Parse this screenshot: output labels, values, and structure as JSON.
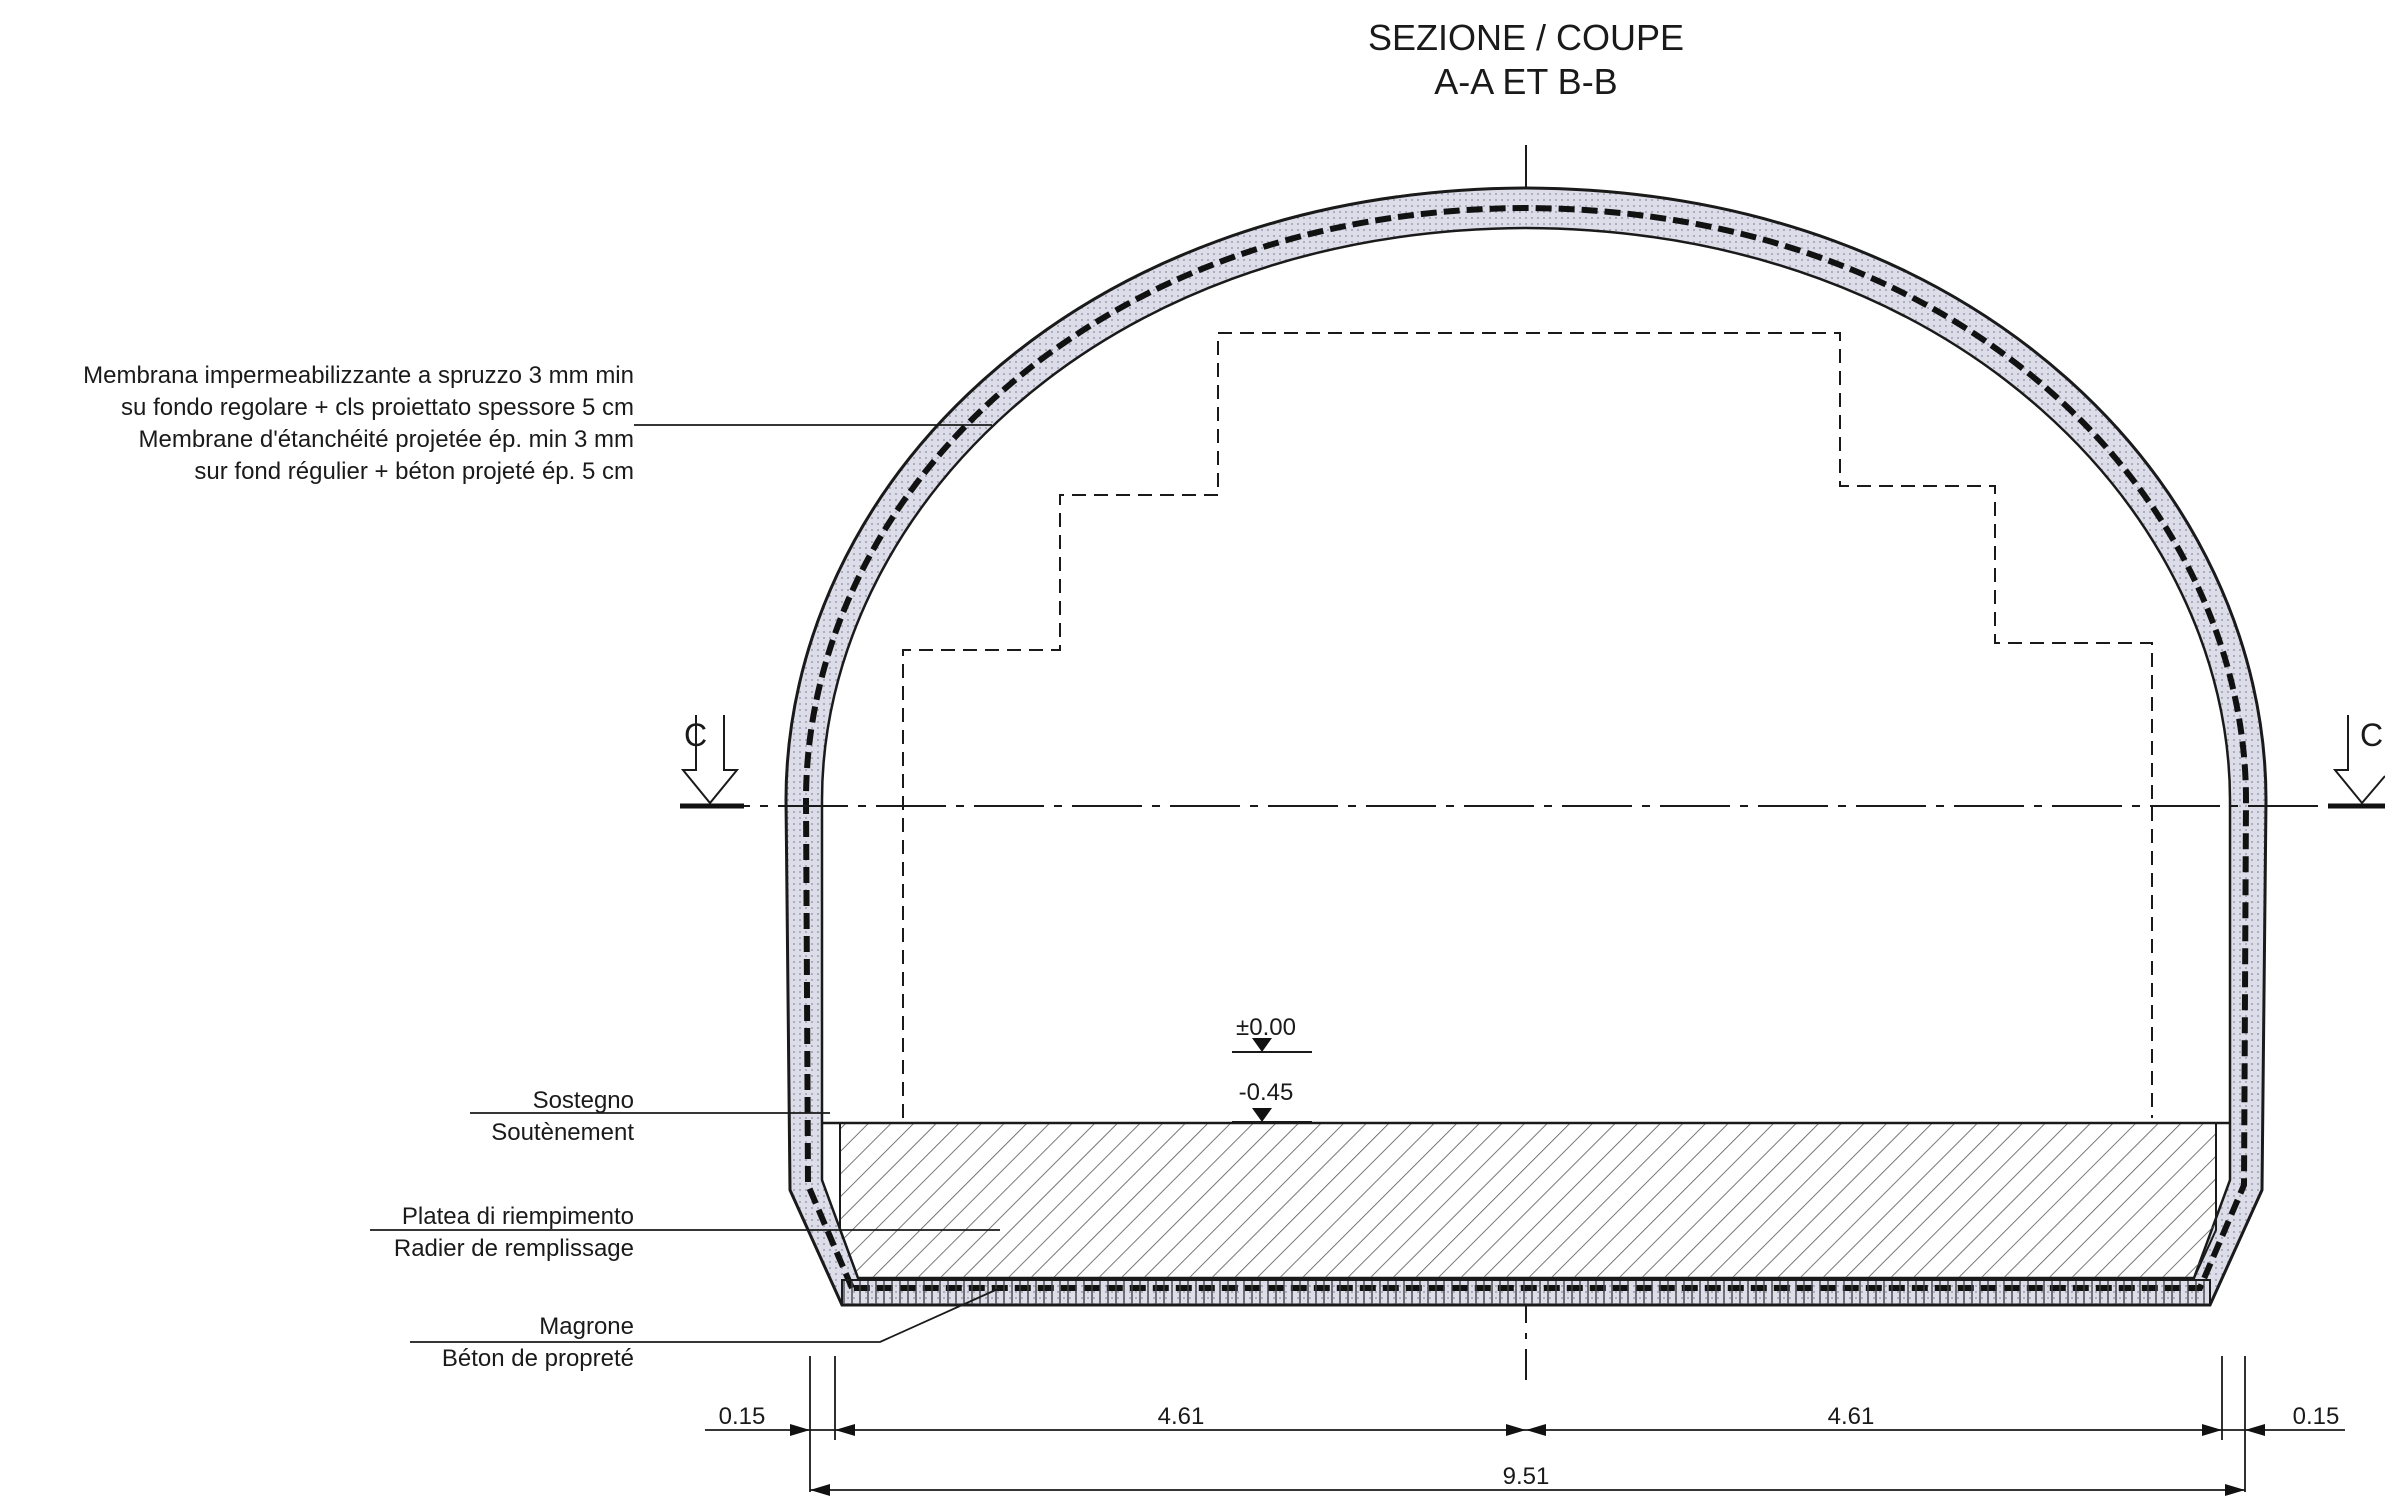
{
  "title": {
    "line1": "SEZIONE / COUPE",
    "line2": "A-A ET B-B"
  },
  "callouts": {
    "membrane": [
      "Membrana impermeabilizzante a spruzzo 3 mm min",
      "su fondo regolare + cls proiettato spessore 5 cm",
      "Membrane d'étanchéité projetée ép. min 3 mm",
      "sur fond régulier + béton projeté ép. 5 cm"
    ],
    "support": [
      "Sostegno",
      "Soutènement"
    ],
    "fill_slab": [
      "Platea di riempimento",
      "Radier de remplissage"
    ],
    "lean_concrete": [
      "Magrone",
      "Béton de propreté"
    ]
  },
  "section_marks": {
    "left": "C",
    "right": "C"
  },
  "levels": {
    "upper": "±0.00",
    "lower": "-0.45"
  },
  "dimensions": {
    "left_lining": "0.15",
    "left_half": "4.61",
    "right_half": "4.61",
    "right_lining": "0.15",
    "overall": "9.51"
  },
  "colors": {
    "line": "#1a1a1a",
    "lining_fill": "#d9dbe6",
    "hatch": "#555555"
  }
}
